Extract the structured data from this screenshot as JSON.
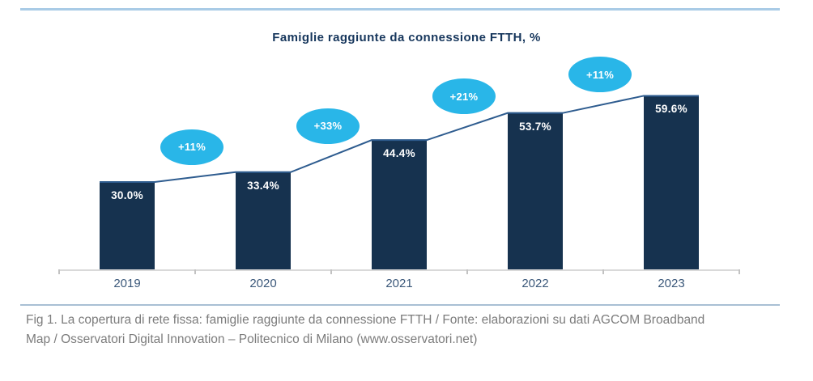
{
  "page": {
    "top_rule_color": "#a9cbe6",
    "divider_color": "#a9c0d4",
    "background": "#ffffff"
  },
  "chart_data": {
    "type": "bar",
    "title": "Famiglie raggiunte da connessione FTTH, %",
    "categories": [
      "2019",
      "2020",
      "2021",
      "2022",
      "2023"
    ],
    "values": [
      30.0,
      33.4,
      44.4,
      53.7,
      59.6
    ],
    "value_labels": [
      "30.0%",
      "33.4%",
      "44.4%",
      "53.7%",
      "59.6%"
    ],
    "growth_labels": [
      "+11%",
      "+33%",
      "+21%",
      "+11%"
    ],
    "xlabel": "",
    "ylabel": "",
    "ylim": [
      0,
      65
    ],
    "grid": false,
    "legend": "none",
    "bar_color": "#16324f",
    "trend_line_color": "#2e5c8f",
    "badge_color": "#29b6e8",
    "bar_label_color": "#ffffff",
    "axis_color": "#d9d9d9",
    "tick_color": "#c2c2c2",
    "category_label_color": "#3b587a",
    "title_color": "#16365c"
  },
  "caption": {
    "lines": [
      "Fig 1. La copertura di rete fissa: famiglie raggiunte da connessione FTTH / Fonte: elaborazioni su dati AGCOM Broadband",
      "Map / Osservatori Digital Innovation – Politecnico di Milano (www.osservatori.net)"
    ],
    "color": "#7c7c7c"
  }
}
